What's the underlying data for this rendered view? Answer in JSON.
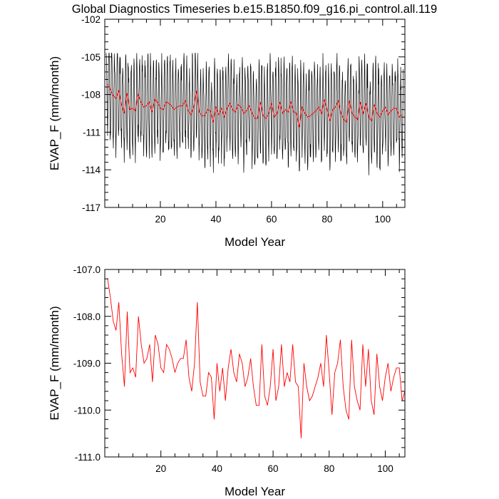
{
  "title": "Global Diagnostics Timeseries b.e15.B1850.f09_g16.pi_control.all.119",
  "colors": {
    "annual": "#ff0000",
    "monthly": "#000000",
    "axis": "#000000"
  },
  "chart_data": [
    {
      "type": "line",
      "name": "monthly-and-annual-timeseries",
      "xlabel": "Model Year",
      "ylabel": "EVAP_F (mm/month)",
      "xlim": [
        0,
        108
      ],
      "ylim": [
        -117,
        -102
      ],
      "xticks": [
        20,
        40,
        60,
        80,
        100
      ],
      "yticks": [
        -117,
        -114,
        -111,
        -108,
        -105,
        -102
      ],
      "ytick_labels": [
        "-117",
        "-114",
        "-111",
        "-108",
        "-105",
        "-102"
      ],
      "series": [
        {
          "name": "monthly",
          "color": "#000000",
          "envelope": "monthly values oscillate seasonally between roughly -116 and -105.5 around the annual mean",
          "range_min": -116.1,
          "range_max": -104.7
        },
        {
          "name": "annual",
          "color": "#ff0000",
          "x": [
            1,
            2,
            3,
            4,
            5,
            6,
            7,
            8,
            9,
            10,
            11,
            12,
            13,
            14,
            15,
            16,
            17,
            18,
            19,
            20,
            21,
            22,
            23,
            24,
            25,
            26,
            27,
            28,
            29,
            30,
            31,
            32,
            33,
            34,
            35,
            36,
            37,
            38,
            39,
            40,
            41,
            42,
            43,
            44,
            45,
            46,
            47,
            48,
            49,
            50,
            51,
            52,
            53,
            54,
            55,
            56,
            57,
            58,
            59,
            60,
            61,
            62,
            63,
            64,
            65,
            66,
            67,
            68,
            69,
            70,
            71,
            72,
            73,
            74,
            75,
            76,
            77,
            78,
            79,
            80,
            81,
            82,
            83,
            84,
            85,
            86,
            87,
            88,
            89,
            90,
            91,
            92,
            93,
            94,
            95,
            96,
            97,
            98,
            99,
            100,
            101,
            102,
            103,
            104,
            105,
            106,
            107
          ],
          "values": [
            -107.2,
            -107.6,
            -108.1,
            -108.3,
            -107.7,
            -108.8,
            -109.5,
            -107.9,
            -109.2,
            -109.1,
            -109.3,
            -108.0,
            -108.6,
            -109.0,
            -108.9,
            -108.6,
            -109.4,
            -108.4,
            -108.6,
            -109.1,
            -109.2,
            -108.6,
            -108.7,
            -108.9,
            -109.2,
            -109.0,
            -108.9,
            -108.9,
            -108.5,
            -109.3,
            -109.6,
            -109.0,
            -107.7,
            -109.4,
            -109.7,
            -109.7,
            -109.2,
            -109.3,
            -110.2,
            -109.0,
            -109.6,
            -109.1,
            -109.8,
            -109.1,
            -108.7,
            -109.2,
            -109.4,
            -108.8,
            -109.0,
            -109.5,
            -109.3,
            -108.9,
            -109.5,
            -109.9,
            -109.9,
            -108.6,
            -109.7,
            -109.9,
            -109.5,
            -108.7,
            -109.8,
            -109.5,
            -108.6,
            -109.5,
            -109.2,
            -109.4,
            -108.6,
            -109.4,
            -109.5,
            -110.6,
            -109.0,
            -109.5,
            -109.8,
            -109.7,
            -109.5,
            -109.3,
            -109.0,
            -109.5,
            -108.4,
            -109.2,
            -110.1,
            -109.2,
            -109.0,
            -108.5,
            -109.5,
            -110.0,
            -110.2,
            -108.5,
            -109.5,
            -109.8,
            -110.0,
            -108.6,
            -109.5,
            -108.7,
            -109.8,
            -110.1,
            -108.8,
            -109.5,
            -109.8,
            -109.3,
            -109.0,
            -109.6,
            -109.3,
            -109.1,
            -109.1,
            -109.8,
            -109.6
          ]
        }
      ]
    },
    {
      "type": "line",
      "name": "annual-timeseries",
      "xlabel": "Model Year",
      "ylabel": "EVAP_F (mm/month)",
      "xlim": [
        0,
        107
      ],
      "ylim": [
        -111,
        -107
      ],
      "xticks": [
        20,
        40,
        60,
        80,
        100
      ],
      "yticks": [
        -111,
        -110,
        -109,
        -108,
        -107
      ],
      "ytick_labels": [
        "-111.0",
        "-110.0",
        "-109.0",
        "-108.0",
        "-107.0"
      ],
      "series": [
        {
          "name": "annual",
          "color": "#ff0000",
          "ref": "same as annual series above"
        }
      ]
    }
  ]
}
